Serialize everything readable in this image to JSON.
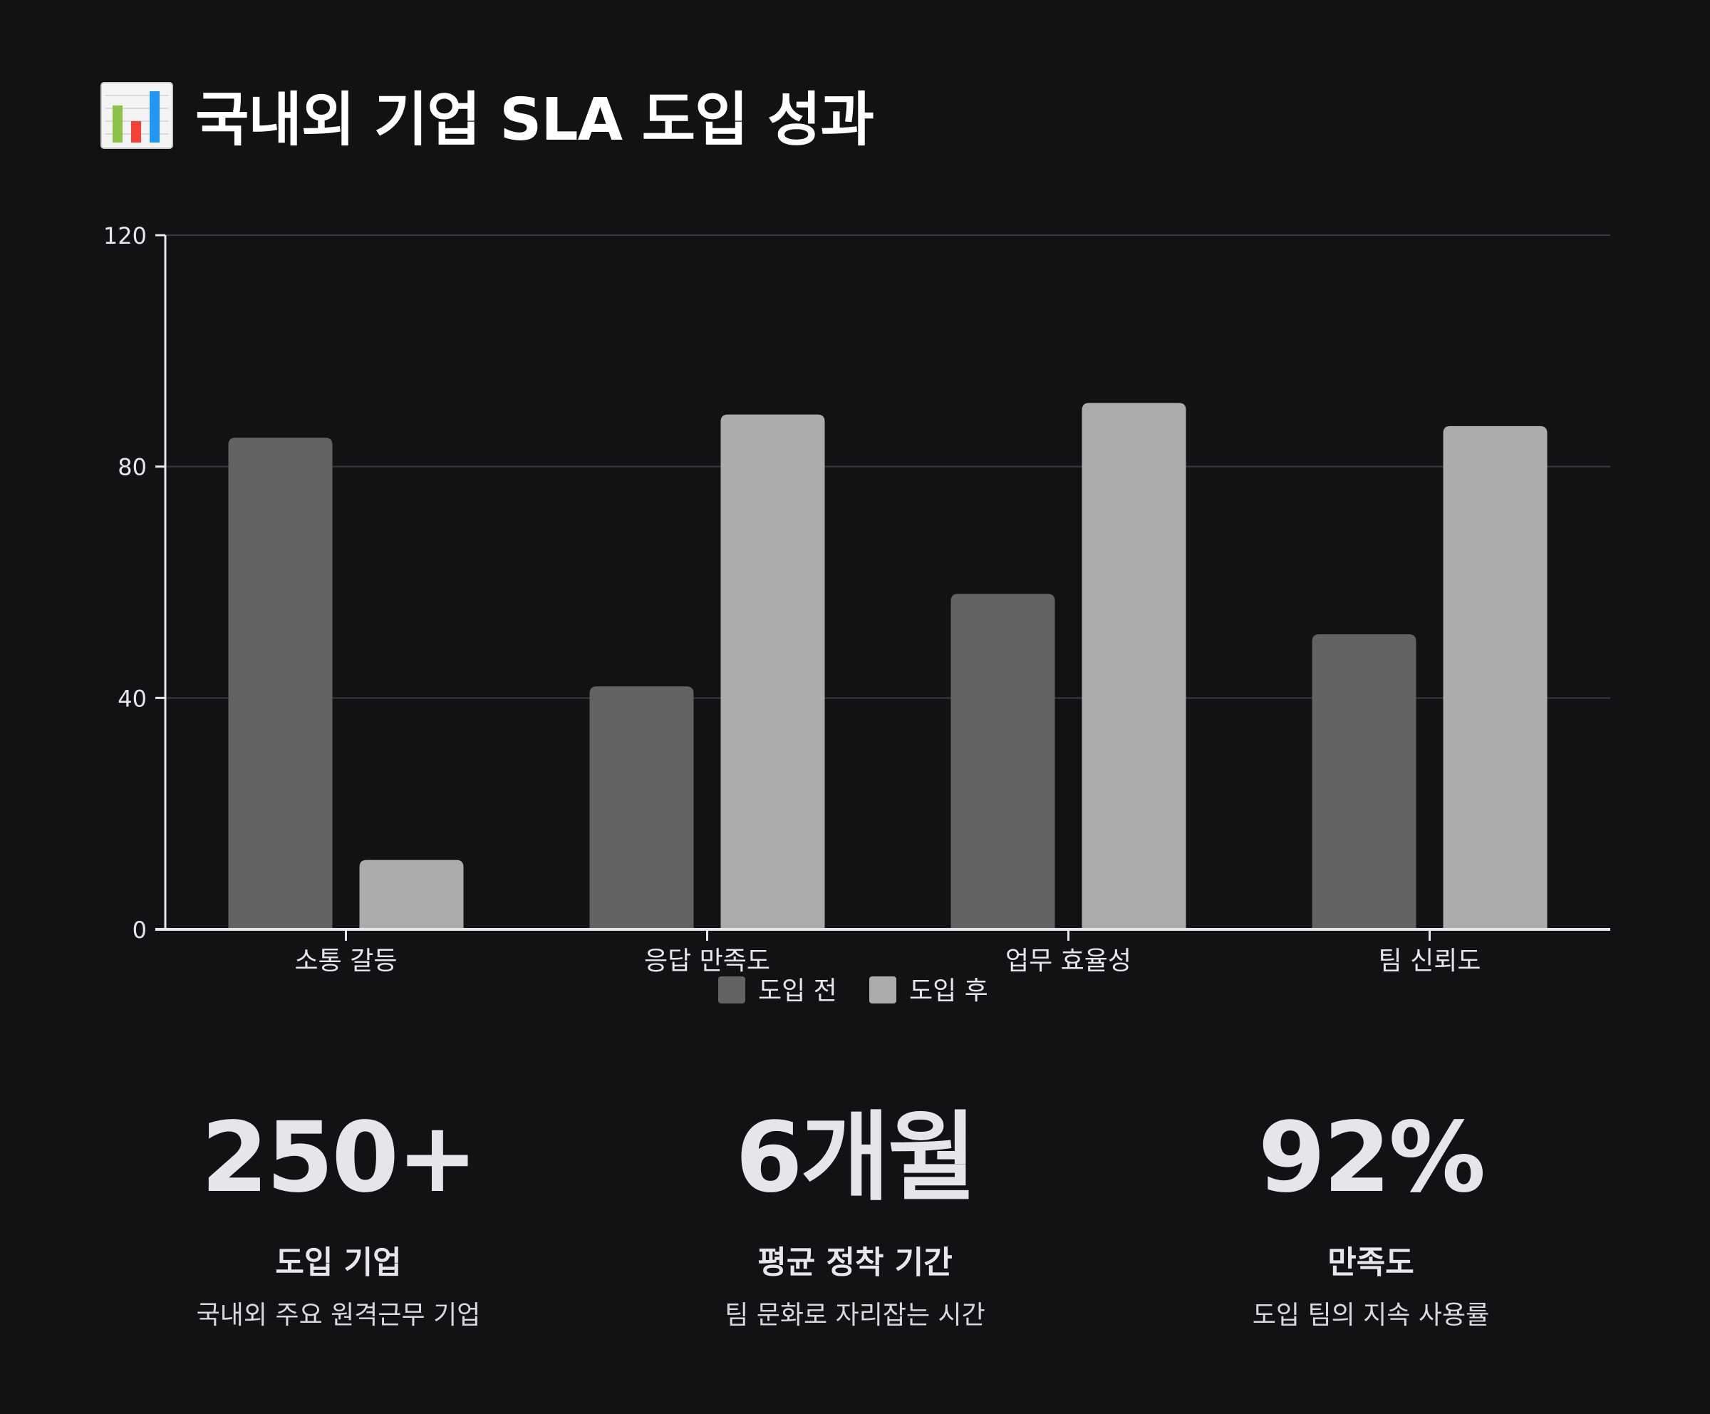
{
  "header": {
    "title": "국내외 기업 SLA 도입 성과",
    "icon": "bar-chart-icon"
  },
  "chart_data": {
    "type": "bar",
    "title": "",
    "xlabel": "",
    "ylabel": "",
    "categories": [
      "소통 갈등",
      "응답 만족도",
      "업무 효율성",
      "팀 신뢰도"
    ],
    "series": [
      {
        "name": "도입 전",
        "values": [
          85,
          42,
          58,
          51
        ],
        "color": "#636363"
      },
      {
        "name": "도입 후",
        "values": [
          12,
          89,
          91,
          87
        ],
        "color": "#acacac"
      }
    ],
    "ylim": [
      0,
      120
    ],
    "yticks": [
      0,
      40,
      80,
      120
    ],
    "grid": true,
    "legend": "bottom"
  },
  "stats": [
    {
      "value": "250+",
      "label": "도입 기업",
      "desc": "국내외 주요 원격근무 기업"
    },
    {
      "value": "6개월",
      "label": "평균 정착 기간",
      "desc": "팀 문화로 자리잡는 시간"
    },
    {
      "value": "92%",
      "label": "만족도",
      "desc": "도입 팀의 지속 사용률"
    }
  ],
  "colors": {
    "background": "#111214",
    "grid": "#3a3b3e",
    "axis": "#e6e7ea"
  }
}
